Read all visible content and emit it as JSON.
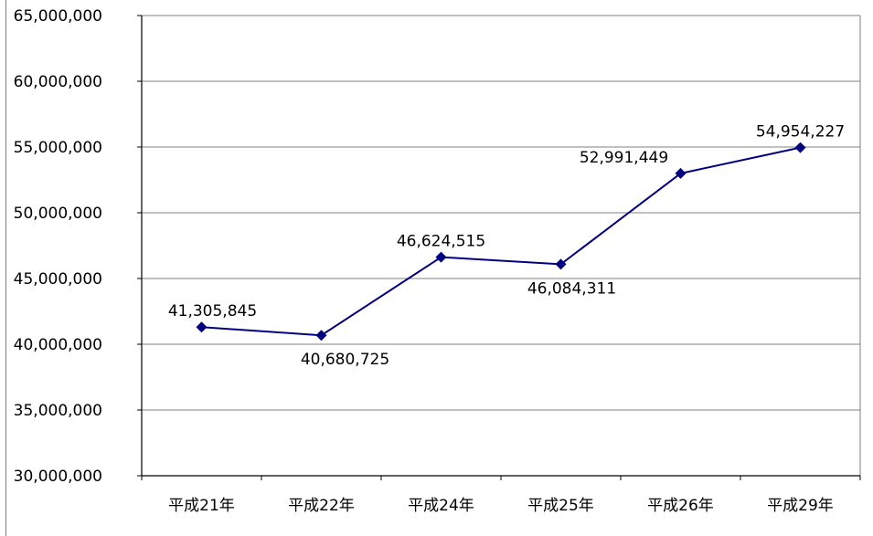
{
  "chart_data": {
    "type": "line",
    "categories": [
      "平成21年",
      "平成22年",
      "平成24年",
      "平成25年",
      "平成26年",
      "平成29年"
    ],
    "series": [
      {
        "values": [
          41305845,
          40680725,
          46624515,
          46084311,
          52991449,
          54954227
        ],
        "data_labels": [
          "41,305,845",
          "40,680,725",
          "46,624,515",
          "46,084,311",
          "52,991,449",
          "54,954,227"
        ],
        "color": "#000080"
      }
    ],
    "y_ticks": [
      "30,000,000",
      "35,000,000",
      "40,000,000",
      "45,000,000",
      "50,000,000",
      "55,000,000",
      "60,000,000",
      "65,000,000"
    ],
    "ylim": [
      30000000,
      65000000
    ],
    "y_step": 5000000,
    "title": "",
    "xlabel": "",
    "ylabel": "",
    "grid": true,
    "legend": false,
    "colors": {
      "line": "#000080",
      "grid": "#808080",
      "axis": "#000000"
    }
  }
}
